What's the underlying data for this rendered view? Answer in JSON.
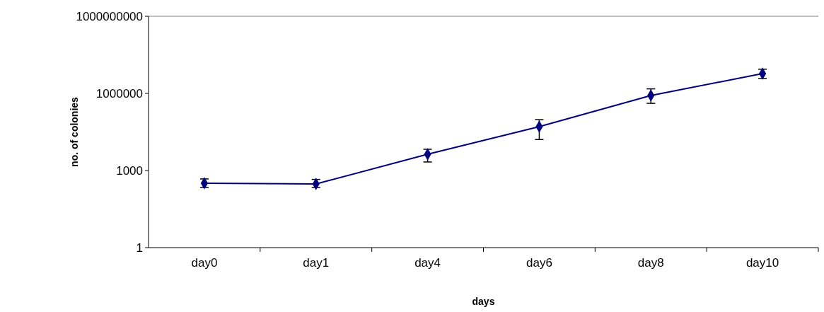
{
  "chart_data": {
    "type": "line",
    "xlabel": "days",
    "ylabel": "no. of colonies",
    "categories": [
      "day0",
      "day1",
      "day4",
      "day6",
      "day8",
      "day10"
    ],
    "series": [
      {
        "color": "#000080",
        "values": [
          320,
          300,
          4300,
          51000,
          830000,
          5900000
        ],
        "errors": [
          [
            219,
            470
          ],
          [
            219,
            450
          ],
          [
            2150,
            6700
          ],
          [
            16000,
            95000
          ],
          [
            410000,
            1500000
          ],
          [
            3800000,
            8700000
          ]
        ]
      }
    ],
    "log": "y",
    "ylim": [
      1,
      1000000000
    ],
    "yticks": [
      1,
      1000,
      1000000,
      1000000000
    ],
    "grid": false,
    "marker": "diamond",
    "line_style": "solid"
  }
}
